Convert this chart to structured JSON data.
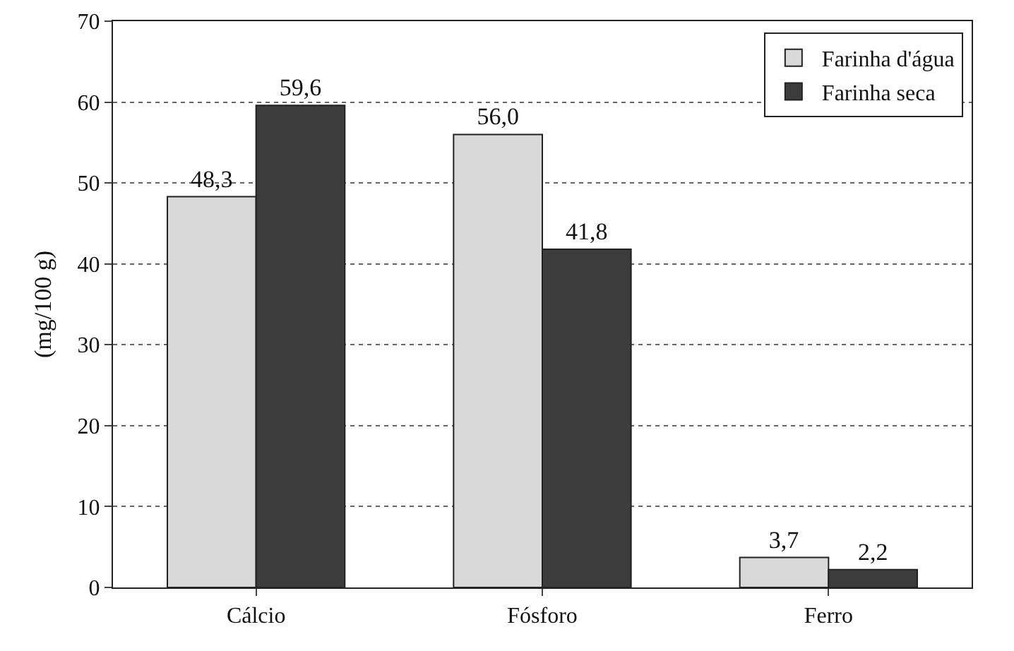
{
  "chart_data": {
    "type": "bar",
    "ylabel": "(mg/100 g)",
    "categories": [
      "Cálcio",
      "Fósforo",
      "Ferro"
    ],
    "series": [
      {
        "name": "Farinha d'água",
        "color": "#d9d9d9",
        "values": [
          48.3,
          56.0,
          3.7
        ],
        "value_labels": [
          "48,3",
          "56,0",
          "3,7"
        ]
      },
      {
        "name": "Farinha seca",
        "color": "#3c3c3c",
        "values": [
          59.6,
          41.8,
          2.2
        ],
        "value_labels": [
          "59,6",
          "41,8",
          "2,2"
        ]
      }
    ],
    "ylim": [
      0,
      70
    ],
    "yticks": [
      0,
      10,
      20,
      30,
      40,
      50,
      60,
      70
    ],
    "grid": "y",
    "legend": "top right"
  }
}
